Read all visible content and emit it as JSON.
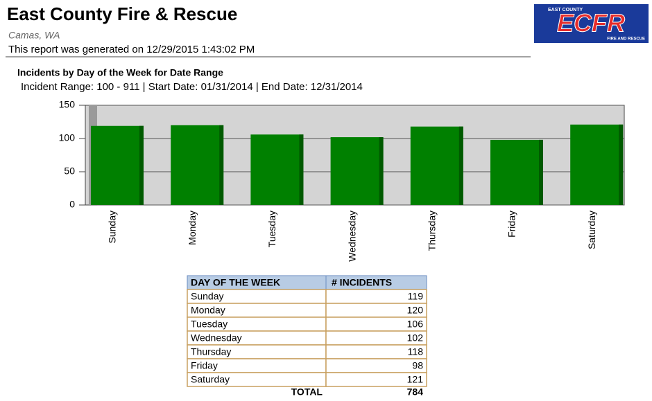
{
  "header": {
    "title": "East County Fire & Rescue",
    "location": "Camas, WA",
    "generated": "This report was generated on 12/29/2015 1:43:02 PM",
    "logo": {
      "top": "EAST COUNTY",
      "main": "ECFR",
      "bottom": "FIRE AND RESCUE"
    }
  },
  "chart_data": {
    "type": "bar",
    "title": "Incidents by Day of the Week for Date Range",
    "subtitle": "Incident Range: 100 - 911 | Start Date: 01/31/2014 | End Date: 12/31/2014",
    "categories": [
      "Sunday",
      "Monday",
      "Tuesday",
      "Wednesday",
      "Thursday",
      "Friday",
      "Saturday"
    ],
    "values": [
      119,
      120,
      106,
      102,
      118,
      98,
      121
    ],
    "color": "#008000",
    "ylim": [
      0,
      150
    ],
    "yticks": [
      0,
      50,
      100,
      150
    ],
    "grid": true
  },
  "table": {
    "header": [
      "DAY OF THE WEEK",
      "# INCIDENTS"
    ],
    "rows": [
      [
        "Sunday",
        119
      ],
      [
        "Monday",
        120
      ],
      [
        "Tuesday",
        106
      ],
      [
        "Wednesday",
        102
      ],
      [
        "Thursday",
        118
      ],
      [
        "Friday",
        98
      ],
      [
        "Saturday",
        121
      ]
    ],
    "total_label": "TOTAL",
    "total": 784
  }
}
